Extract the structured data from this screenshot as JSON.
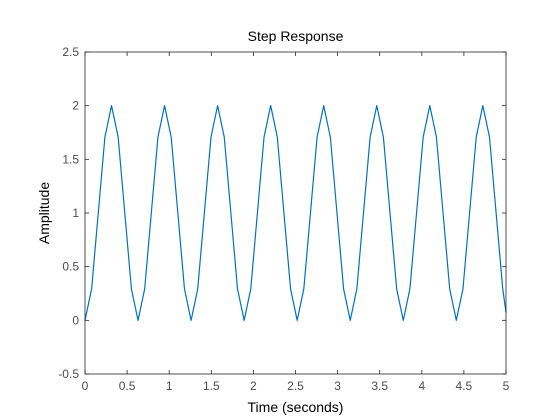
{
  "chart_data": {
    "type": "line",
    "title": "Step Response",
    "xlabel": "Time (seconds)",
    "ylabel": "Amplitude",
    "xlim": [
      0,
      5
    ],
    "ylim": [
      -0.5,
      2.5
    ],
    "x_ticks": [
      0,
      0.5,
      1,
      1.5,
      2,
      2.5,
      3,
      3.5,
      4,
      4.5,
      5
    ],
    "x_tick_labels": [
      "0",
      "0.5",
      "1",
      "1.5",
      "2",
      "2.5",
      "3",
      "3.5",
      "4",
      "4.5",
      "5"
    ],
    "y_ticks": [
      -0.5,
      0,
      0.5,
      1,
      1.5,
      2,
      2.5
    ],
    "y_tick_labels": [
      "-0.5",
      "0",
      "0.5",
      "1",
      "1.5",
      "2",
      "2.5"
    ],
    "grid": false,
    "series": [
      {
        "color": "#0072bd",
        "x": [
          0,
          0.0788,
          0.1575,
          0.2363,
          0.315,
          0.3938,
          0.4725,
          0.5513,
          0.63,
          0.7088,
          0.7875,
          0.8663,
          0.945,
          1.0238,
          1.1025,
          1.1813,
          1.26,
          1.3388,
          1.4175,
          1.4963,
          1.575,
          1.6538,
          1.7325,
          1.8113,
          1.89,
          1.9688,
          2.0475,
          2.1263,
          2.205,
          2.2838,
          2.3625,
          2.4413,
          2.52,
          2.5988,
          2.6775,
          2.7563,
          2.835,
          2.9138,
          2.9925,
          3.0713,
          3.15,
          3.2288,
          3.3075,
          3.3863,
          3.465,
          3.5438,
          3.6225,
          3.7013,
          3.78,
          3.8588,
          3.9375,
          4.0163,
          4.095,
          4.1738,
          4.2525,
          4.3313,
          4.41,
          4.4888,
          4.5675,
          4.6463,
          4.725,
          4.8038,
          4.8825,
          4.9613,
          5.0
        ],
        "y": [
          0,
          0.293,
          1.0,
          1.707,
          2.0,
          1.707,
          1.0,
          0.293,
          0,
          0.293,
          1.0,
          1.707,
          2.0,
          1.707,
          1.0,
          0.293,
          0,
          0.293,
          1.0,
          1.707,
          2.0,
          1.707,
          1.0,
          0.293,
          0,
          0.293,
          1.0,
          1.707,
          2.0,
          1.707,
          1.0,
          0.293,
          0,
          0.293,
          1.0,
          1.707,
          2.0,
          1.707,
          1.0,
          0.293,
          0,
          0.293,
          1.0,
          1.707,
          2.0,
          1.707,
          1.0,
          0.293,
          0,
          0.293,
          1.0,
          1.707,
          2.0,
          1.707,
          1.0,
          0.293,
          0,
          0.293,
          1.0,
          1.707,
          2.0,
          1.707,
          1.0,
          0.293,
          0.076
        ]
      }
    ]
  }
}
